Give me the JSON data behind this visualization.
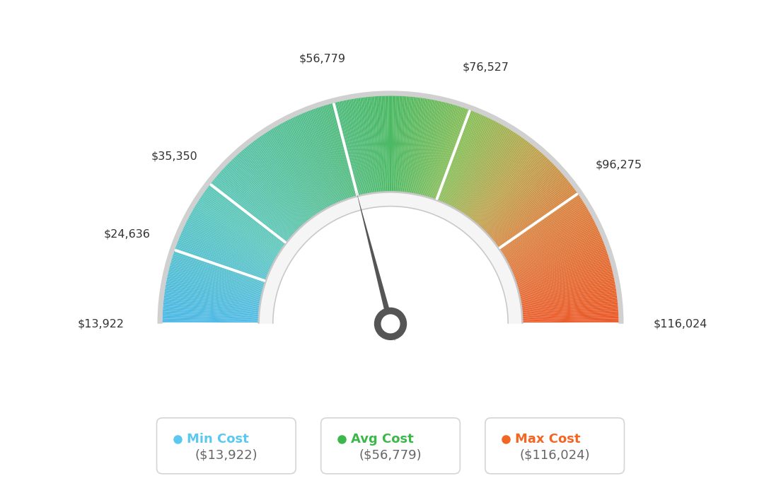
{
  "min_val": 13922,
  "max_val": 116024,
  "avg_val": 56779,
  "tick_labels": [
    "$13,922",
    "$24,636",
    "$35,350",
    "$56,779",
    "$76,527",
    "$96,275",
    "$116,024"
  ],
  "tick_values": [
    13922,
    24636,
    35350,
    56779,
    76527,
    96275,
    116024
  ],
  "legend_items": [
    {
      "label": "Min Cost",
      "value": "($13,922)",
      "color": "#5bc8f0"
    },
    {
      "label": "Avg Cost",
      "value": "($56,779)",
      "color": "#3cb84a"
    },
    {
      "label": "Max Cost",
      "value": "($116,024)",
      "color": "#f26522"
    }
  ],
  "background_color": "#ffffff",
  "needle_value": 56779,
  "color_stops": [
    [
      0.0,
      [
        78,
        185,
        230
      ]
    ],
    [
      0.18,
      [
        95,
        200,
        190
      ]
    ],
    [
      0.38,
      [
        85,
        190,
        140
      ]
    ],
    [
      0.5,
      [
        75,
        185,
        100
      ]
    ],
    [
      0.62,
      [
        140,
        190,
        90
      ]
    ],
    [
      0.72,
      [
        190,
        165,
        80
      ]
    ],
    [
      0.82,
      [
        220,
        130,
        65
      ]
    ],
    [
      1.0,
      [
        235,
        90,
        40
      ]
    ]
  ]
}
